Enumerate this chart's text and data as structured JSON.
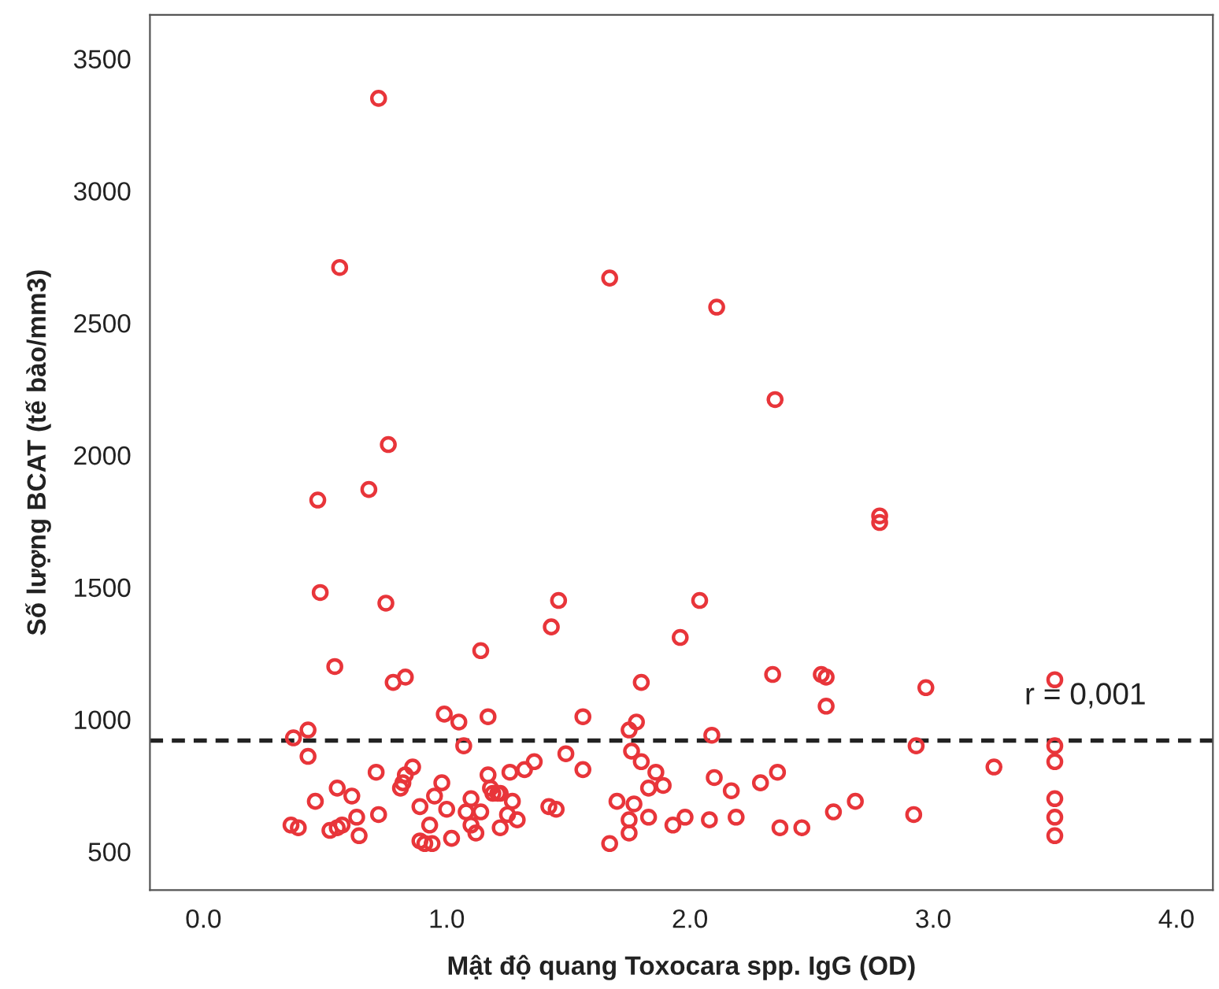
{
  "chart_data": {
    "type": "scatter",
    "xlabel": "Mật độ quang Toxocara spp. IgG (OD)",
    "ylabel": "Số lượng BCAT (tế bào/mm3)",
    "marker": "circle",
    "series": [
      {
        "color": "#e8353a",
        "x": [
          0.72,
          0.56,
          1.67,
          2.11,
          2.35,
          0.76,
          0.68,
          0.47,
          2.78,
          2.78,
          0.48,
          0.75,
          1.46,
          2.04,
          1.43,
          1.96,
          1.14,
          0.54,
          0.78,
          0.83,
          0.99,
          1.05,
          1.17,
          0.37,
          0.43,
          0.43,
          1.07,
          0.71,
          0.46,
          0.55,
          0.61,
          0.63,
          0.72,
          0.64,
          0.36,
          0.39,
          0.52,
          0.55,
          0.57,
          0.81,
          0.82,
          0.83,
          0.86,
          0.89,
          0.95,
          0.98,
          1.0,
          0.89,
          0.91,
          0.94,
          0.93,
          1.02,
          1.08,
          1.1,
          1.14,
          1.1,
          1.12,
          1.17,
          1.19,
          1.22,
          1.22,
          1.56,
          1.78,
          1.75,
          1.8,
          2.34,
          2.54,
          2.56,
          2.56,
          2.09,
          1.26,
          1.32,
          1.36,
          1.49,
          1.56,
          1.76,
          1.8,
          1.86,
          1.83,
          1.89,
          1.18,
          1.21,
          1.27,
          1.42,
          1.45,
          1.25,
          1.29,
          1.7,
          1.77,
          1.83,
          1.75,
          1.75,
          1.67,
          1.93,
          1.98,
          2.08,
          2.1,
          2.17,
          2.19,
          2.29,
          2.36,
          2.37,
          2.46,
          2.59,
          2.97,
          3.5,
          2.93,
          3.5,
          3.5,
          3.25,
          3.5,
          3.5,
          3.5,
          2.68,
          2.92
        ],
        "values": [
          3350,
          2710,
          2670,
          2560,
          2210,
          2040,
          1870,
          1830,
          1770,
          1745,
          1480,
          1440,
          1450,
          1450,
          1350,
          1310,
          1260,
          1200,
          1140,
          1160,
          1020,
          990,
          1010,
          930,
          960,
          860,
          900,
          800,
          690,
          740,
          710,
          630,
          640,
          560,
          600,
          590,
          580,
          590,
          600,
          740,
          760,
          790,
          820,
          670,
          710,
          760,
          660,
          540,
          530,
          530,
          600,
          550,
          650,
          700,
          650,
          600,
          570,
          790,
          720,
          720,
          590,
          1010,
          990,
          960,
          1140,
          1170,
          1170,
          1160,
          1050,
          940,
          800,
          810,
          840,
          870,
          810,
          880,
          840,
          800,
          740,
          750,
          740,
          720,
          690,
          670,
          660,
          640,
          620,
          690,
          680,
          630,
          620,
          570,
          530,
          600,
          630,
          620,
          780,
          730,
          630,
          760,
          800,
          590,
          590,
          650,
          1120,
          1150,
          900,
          900,
          840,
          820,
          700,
          630,
          560,
          690,
          640
        ]
      }
    ],
    "xlim": [
      -0.22,
      4.15
    ],
    "ylim": [
      354,
      3666
    ],
    "xticks": [
      {
        "value": 0,
        "label": "0.0"
      },
      {
        "value": 1,
        "label": "1.0"
      },
      {
        "value": 2,
        "label": "2.0"
      },
      {
        "value": 3,
        "label": "3.0"
      },
      {
        "value": 4,
        "label": "4.0"
      }
    ],
    "yticks": [
      500,
      1000,
      1500,
      2000,
      2500,
      3000,
      3500
    ],
    "ref_lines": [
      {
        "axis": "y",
        "value": 920,
        "color": "#222222",
        "line_style": "dashed"
      }
    ],
    "annotations": [
      "r = 0,001"
    ],
    "grid": false
  }
}
